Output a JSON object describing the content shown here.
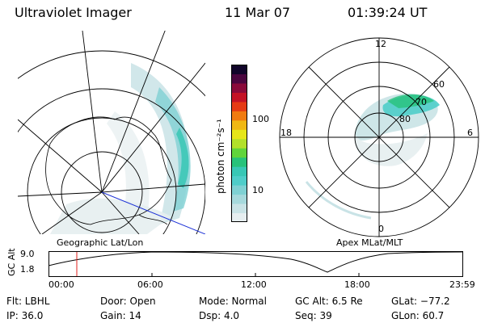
{
  "header": {
    "title": "Ultraviolet Imager",
    "date": "11 Mar 07",
    "time": "01:39:24 UT"
  },
  "left_panel_label": "Geographic Lat/Lon",
  "right_panel_label": "Apex MLat/MLT",
  "colorbar": {
    "unit_label": "photon cm⁻²s⁻¹",
    "ticks": [
      "100",
      "10"
    ],
    "colors": [
      "#e6eef0",
      "#c9e3e6",
      "#a6d9dc",
      "#7fd1d3",
      "#4fcdc9",
      "#38c7b5",
      "#27c27a",
      "#61d43b",
      "#b2e02a",
      "#e6e619",
      "#f0b814",
      "#f07b10",
      "#e53a14",
      "#c41225",
      "#8a0a3a",
      "#4a063f",
      "#10052a"
    ]
  },
  "mlt_labels": {
    "top": "12",
    "bottom": "0",
    "left": "18",
    "right": "6"
  },
  "lat_labels": [
    "60",
    "70",
    "80"
  ],
  "altitude_plot": {
    "axis_label": "GC Alt",
    "y_ticks": [
      "9.0",
      "1.8"
    ],
    "x_ticks": [
      "00:00",
      "06:00",
      "12:00",
      "18:00",
      "23:59"
    ],
    "current_time_marker": "01:39"
  },
  "info": {
    "flt": "Flt: LBHL",
    "door": "Door: Open",
    "mode": "Mode: Normal",
    "gc_alt": "GC Alt: 6.5 Re",
    "glat": "GLat: −77.2",
    "ip": "IP: 36.0",
    "gain": "Gain: 14",
    "dsp": "Dsp:    4.0",
    "seq": "Seq: 39",
    "glon": "GLon:  60.7"
  }
}
